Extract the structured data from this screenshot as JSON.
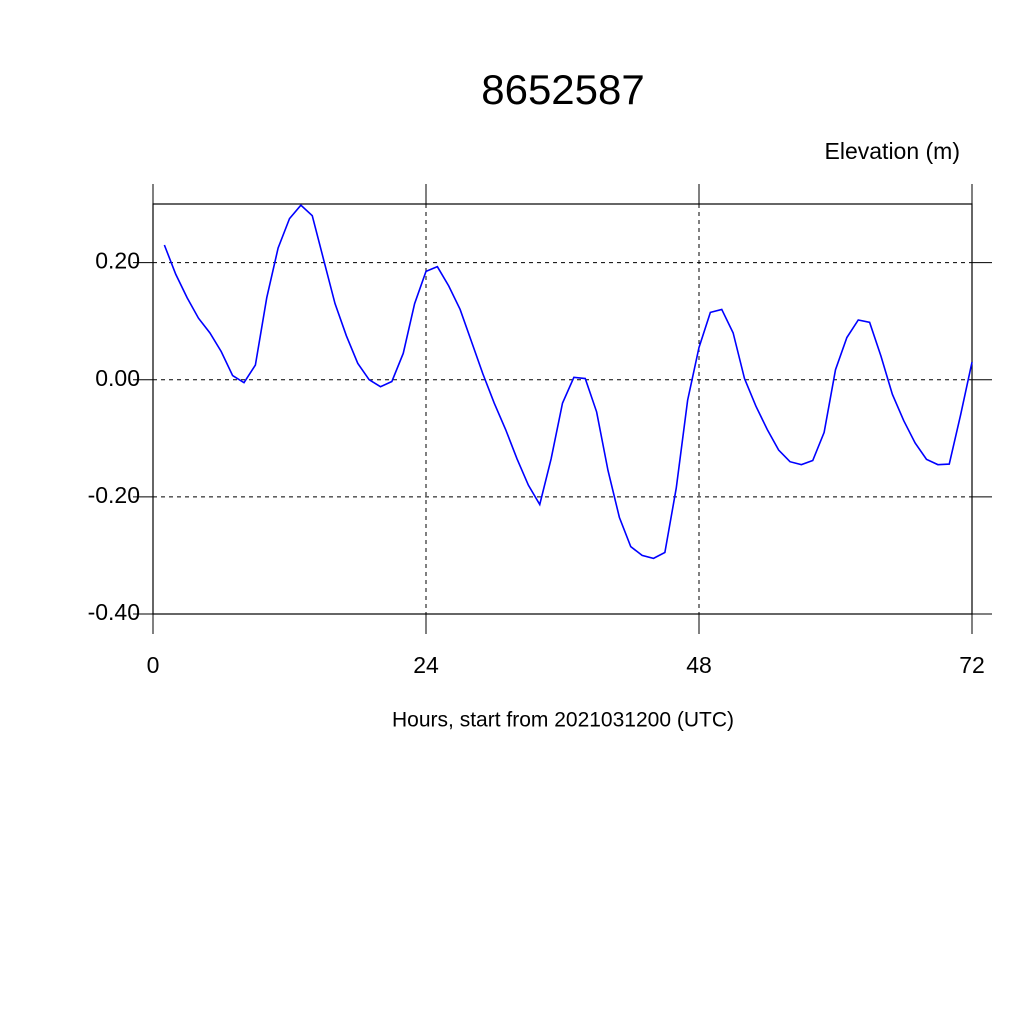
{
  "chart_data": {
    "type": "line",
    "title": "8652587",
    "y_label": "Elevation (m)",
    "x_label": "Hours, start from 2021031200 (UTC)",
    "grid": true,
    "grid_style": "dashed",
    "xlim": [
      0,
      72
    ],
    "xticks": [
      0,
      24,
      48,
      72
    ],
    "ylim": [
      -0.4,
      0.3
    ],
    "yticks": [
      {
        "value": -0.4,
        "label": "-0.40"
      },
      {
        "value": -0.2,
        "label": "-0.20"
      },
      {
        "value": 0,
        "label": "0.00"
      },
      {
        "value": 0.2,
        "label": "0.20"
      }
    ],
    "x": [
      1,
      2,
      3,
      4,
      5,
      6,
      7,
      8,
      9,
      10,
      11,
      12,
      13,
      14,
      15,
      16,
      17,
      18,
      19,
      20,
      21,
      22,
      23,
      24,
      25,
      26,
      27,
      28,
      29,
      30,
      31,
      32,
      33,
      34,
      35,
      36,
      37,
      38,
      39,
      40,
      41,
      42,
      43,
      44,
      45,
      46,
      47,
      48,
      49,
      50,
      51,
      52,
      53,
      54,
      55,
      56,
      57,
      58,
      59,
      60,
      61,
      62,
      63,
      64,
      65,
      66,
      67,
      68,
      69,
      70,
      71,
      72
    ],
    "series": [
      {
        "color": "#0000ff",
        "values": [
          0.23,
          0.18,
          0.14,
          0.105,
          0.08,
          0.048,
          0.007,
          -0.005,
          0.025,
          0.14,
          0.225,
          0.275,
          0.298,
          0.28,
          0.205,
          0.13,
          0.075,
          0.028,
          0.0,
          -0.012,
          -0.003,
          0.045,
          0.13,
          0.185,
          0.193,
          0.16,
          0.12,
          0.065,
          0.01,
          -0.04,
          -0.085,
          -0.135,
          -0.18,
          -0.213,
          -0.135,
          -0.04,
          0.004,
          0.002,
          -0.055,
          -0.155,
          -0.235,
          -0.285,
          -0.3,
          -0.305,
          -0.295,
          -0.185,
          -0.035,
          0.055,
          0.115,
          0.12,
          0.08,
          0.002,
          -0.045,
          -0.085,
          -0.12,
          -0.14,
          -0.145,
          -0.138,
          -0.09,
          0.017,
          0.072,
          0.102,
          0.098,
          0.04,
          -0.025,
          -0.07,
          -0.108,
          -0.136,
          -0.145,
          -0.144,
          -0.06,
          0.03
        ]
      }
    ]
  }
}
